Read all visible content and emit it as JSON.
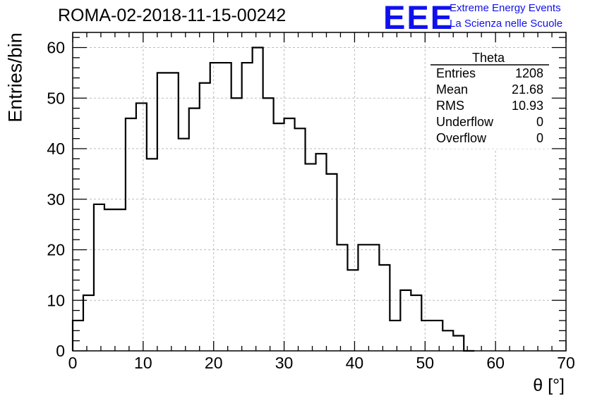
{
  "header": {
    "title": "ROMA-02-2018-11-15-00242",
    "logo_text": "EEE",
    "logo_line1": "Extreme Energy Events",
    "logo_line2": "La Scienza nelle Scuole"
  },
  "stats_box": {
    "title": "Theta",
    "rows": [
      {
        "label": "Entries",
        "value": "1208"
      },
      {
        "label": "Mean",
        "value": "21.68"
      },
      {
        "label": "RMS",
        "value": "10.93"
      },
      {
        "label": "Underflow",
        "value": "0"
      },
      {
        "label": "Overflow",
        "value": "0"
      }
    ]
  },
  "chart_data": {
    "type": "histogram",
    "title": "ROMA-02-2018-11-15-00242",
    "xlabel": "θ [°]",
    "ylabel": "Entries/bin",
    "xlim": [
      0,
      70
    ],
    "ylim": [
      0,
      63
    ],
    "x_ticks": [
      0,
      10,
      20,
      30,
      40,
      50,
      60,
      70
    ],
    "y_ticks": [
      0,
      10,
      20,
      30,
      40,
      50,
      60
    ],
    "grid": true,
    "bin_width": 1.5,
    "bin_start": 0,
    "values": [
      6,
      11,
      29,
      28,
      28,
      46,
      49,
      38,
      55,
      55,
      42,
      48,
      53,
      57,
      57,
      50,
      57,
      60,
      50,
      45,
      46,
      44,
      37,
      39,
      35,
      21,
      16,
      21,
      21,
      17,
      6,
      12,
      11,
      6,
      6,
      4,
      3,
      0
    ],
    "colors": {
      "line": "#000000",
      "grid": "#bbbbbb",
      "logo": "#1010ee"
    }
  }
}
